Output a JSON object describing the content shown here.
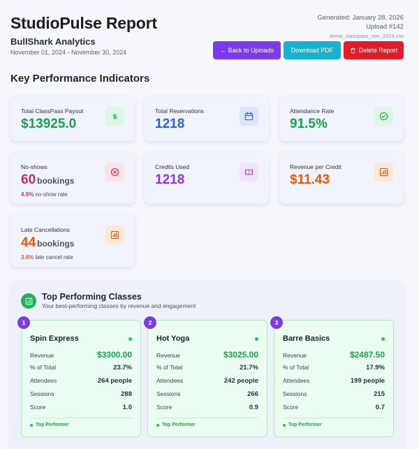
{
  "header": {
    "title": "StudioPulse Report",
    "company": "BullShark Analytics",
    "period": "November 01, 2024 - November 30, 2024",
    "generated": "Generated: January 28, 2026",
    "upload": "Upload #142",
    "filename": "demo_classpass_nov_2024.csv"
  },
  "actions": {
    "back_label": "← Back to Uploads",
    "pdf_label": "Download PDF",
    "delete_label": "Delete Report"
  },
  "kpi": {
    "heading": "Key Performance Indicators",
    "cards": [
      {
        "label": "Total ClassPass Payout",
        "value": "$13925.0",
        "color": "#16a34a",
        "icon": "dollar-icon",
        "icon_bg": "#dcf7e4"
      },
      {
        "label": "Total Reservations",
        "value": "1218",
        "color": "#2563eb",
        "icon": "calendar-icon",
        "icon_bg": "#dbe6fb"
      },
      {
        "label": "Attendance Rate",
        "value": "91.5%",
        "color": "#16a34a",
        "icon": "check-circle-icon",
        "icon_bg": "#dcf7e4"
      },
      {
        "label": "No-shows",
        "value": "60",
        "unit": "bookings",
        "sub_pct": "4.9%",
        "sub_text": "no-show rate",
        "color": "#dc2655",
        "icon": "x-circle-icon",
        "icon_bg": "#fde2e7"
      },
      {
        "label": "Credits Used",
        "value": "1218",
        "color": "#9333ea",
        "icon": "ticket-icon",
        "icon_bg": "#f1e3fb"
      },
      {
        "label": "Revenue per Credit",
        "value": "$11.43",
        "color": "#ea580c",
        "icon": "bar-chart-icon",
        "icon_bg": "#fde8d6"
      },
      {
        "label": "Late Cancellations",
        "value": "44",
        "unit": "bookings",
        "sub_pct": "3.6%",
        "sub_text": "late cancel rate",
        "color": "#ea580c",
        "icon": "bar-chart-icon",
        "icon_bg": "#fde8d6"
      }
    ]
  },
  "top_classes": {
    "title": "Top Performing Classes",
    "subtitle": "Your best-performing classes by revenue and engagement",
    "row_labels": {
      "revenue": "Revenue",
      "pct": "% of Total",
      "attendees": "Attendees",
      "sessions": "Sessions",
      "score": "Score"
    },
    "footer_label": "Top Performer",
    "classes": [
      {
        "rank": "1",
        "name": "Spin Express",
        "revenue": "$3300.00",
        "pct": "23.7%",
        "attendees": "264 people",
        "sessions": "288",
        "score": "1.0"
      },
      {
        "rank": "2",
        "name": "Hot Yoga",
        "revenue": "$3025.00",
        "pct": "21.7%",
        "attendees": "242 people",
        "sessions": "266",
        "score": "0.9"
      },
      {
        "rank": "3",
        "name": "Barre Basics",
        "revenue": "$2487.50",
        "pct": "17.9%",
        "attendees": "199 people",
        "sessions": "215",
        "score": "0.7"
      }
    ]
  }
}
